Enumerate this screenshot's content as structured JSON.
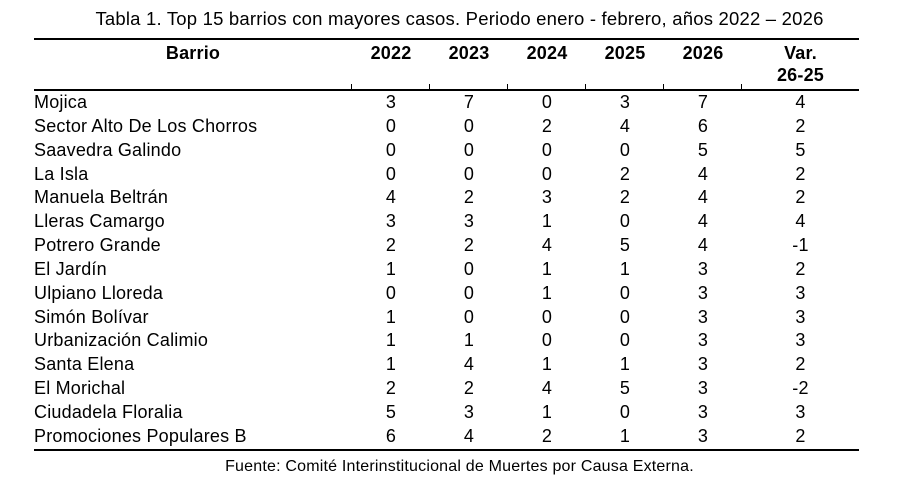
{
  "title": "Tabla 1. Top 15 barrios con mayores casos. Periodo enero - febrero, años 2022 – 2026",
  "table": {
    "headers": {
      "barrio": "Barrio",
      "years": [
        "2022",
        "2023",
        "2024",
        "2025",
        "2026"
      ],
      "var_line1": "Var.",
      "var_line2": "26-25"
    },
    "rows": [
      {
        "barrio": "Mojica",
        "values": [
          "3",
          "7",
          "0",
          "3",
          "7",
          "4"
        ]
      },
      {
        "barrio": "Sector Alto De Los Chorros",
        "values": [
          "0",
          "0",
          "2",
          "4",
          "6",
          "2"
        ]
      },
      {
        "barrio": "Saavedra Galindo",
        "values": [
          "0",
          "0",
          "0",
          "0",
          "5",
          "5"
        ]
      },
      {
        "barrio": "La Isla",
        "values": [
          "0",
          "0",
          "0",
          "2",
          "4",
          "2"
        ]
      },
      {
        "barrio": "Manuela Beltrán",
        "values": [
          "4",
          "2",
          "3",
          "2",
          "4",
          "2"
        ]
      },
      {
        "barrio": "Lleras Camargo",
        "values": [
          "3",
          "3",
          "1",
          "0",
          "4",
          "4"
        ]
      },
      {
        "barrio": "Potrero Grande",
        "values": [
          "2",
          "2",
          "4",
          "5",
          "4",
          "-1"
        ]
      },
      {
        "barrio": "El Jardín",
        "values": [
          "1",
          "0",
          "1",
          "1",
          "3",
          "2"
        ]
      },
      {
        "barrio": "Ulpiano Lloreda",
        "values": [
          "0",
          "0",
          "1",
          "0",
          "3",
          "3"
        ]
      },
      {
        "barrio": "Simón Bolívar",
        "values": [
          "1",
          "0",
          "0",
          "0",
          "3",
          "3"
        ]
      },
      {
        "barrio": "Urbanización Calimio",
        "values": [
          "1",
          "1",
          "0",
          "0",
          "3",
          "3"
        ]
      },
      {
        "barrio": "Santa Elena",
        "values": [
          "1",
          "4",
          "1",
          "1",
          "3",
          "2"
        ]
      },
      {
        "barrio": "El Morichal",
        "values": [
          "2",
          "2",
          "4",
          "5",
          "3",
          "-2"
        ]
      },
      {
        "barrio": "Ciudadela Floralia",
        "values": [
          "5",
          "3",
          "1",
          "0",
          "3",
          "3"
        ]
      },
      {
        "barrio": "Promociones Populares B",
        "values": [
          "6",
          "4",
          "2",
          "1",
          "3",
          "2"
        ]
      }
    ]
  },
  "source": "Fuente: Comité Interinstitucional de Muertes por Causa Externa."
}
